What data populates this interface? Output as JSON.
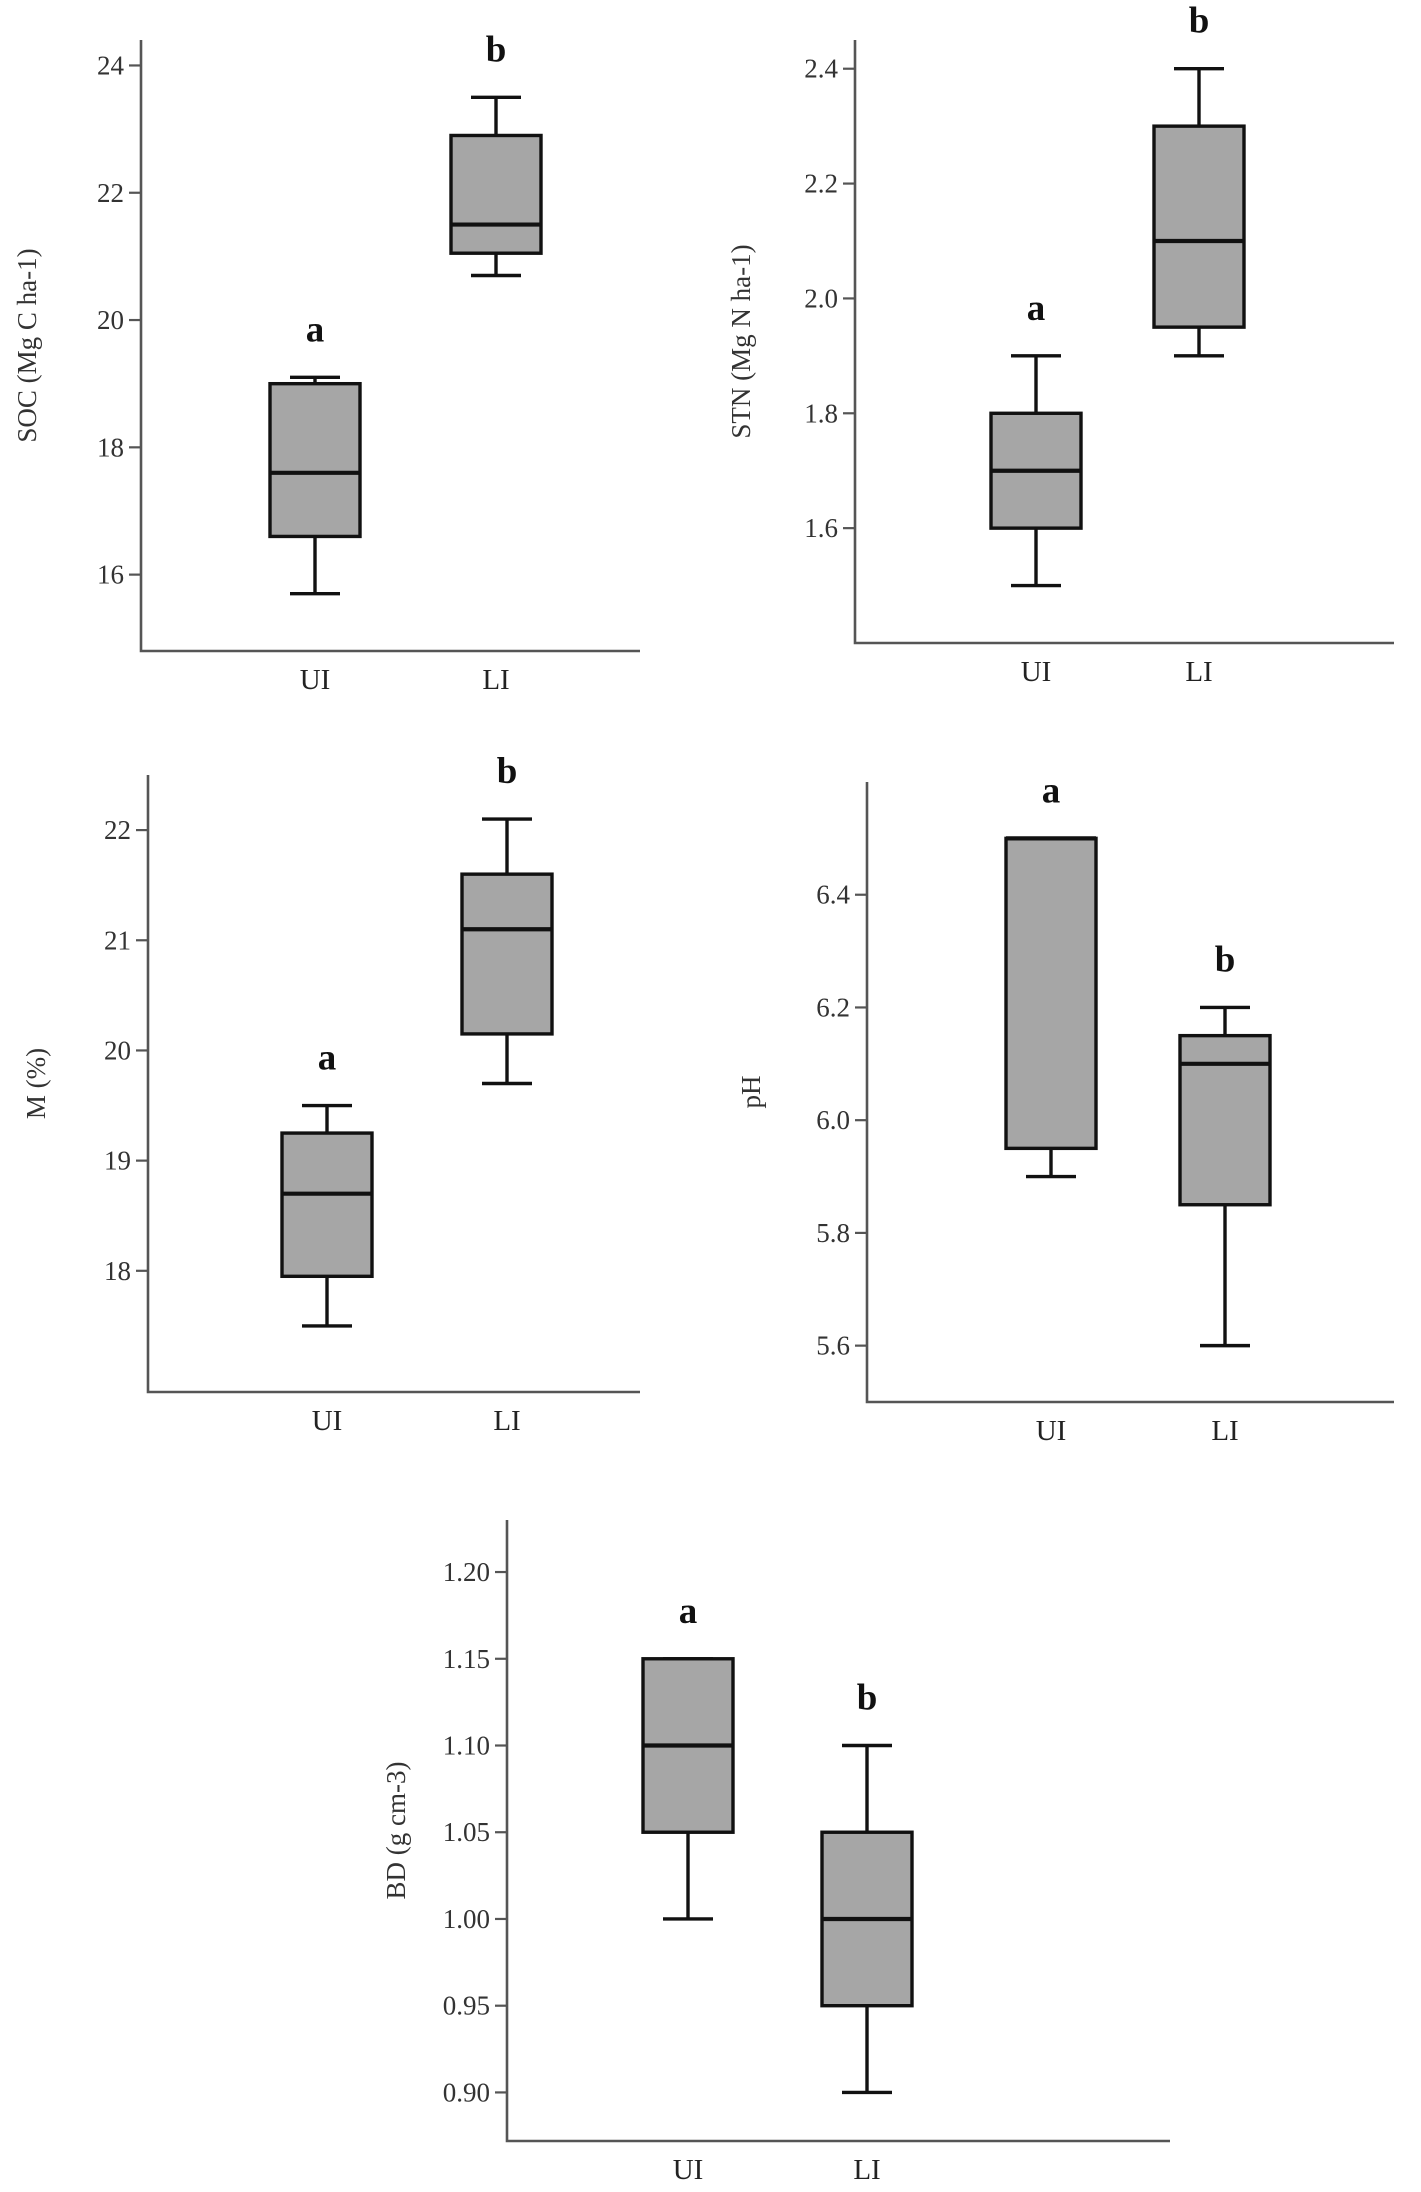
{
  "chart_data": [
    {
      "type": "box",
      "ylabel": "SOC (Mg C ha-1)",
      "ylim": [
        14.8,
        24.4
      ],
      "yticks": [
        16,
        18,
        20,
        22,
        24
      ],
      "tick_decimals": 0,
      "categories": [
        "UI",
        "LI"
      ],
      "boxes": [
        {
          "category": "UI",
          "min": 15.7,
          "q1": 16.6,
          "median": 17.6,
          "q3": 19.0,
          "max": 19.1,
          "letter": "a"
        },
        {
          "category": "LI",
          "min": 20.7,
          "q1": 21.05,
          "median": 21.5,
          "q3": 22.9,
          "max": 23.5,
          "letter": "b"
        }
      ]
    },
    {
      "type": "box",
      "ylabel": "STN (Mg N ha-1)",
      "ylim": [
        1.4,
        2.45
      ],
      "yticks": [
        1.6,
        1.8,
        2.0,
        2.2,
        2.4
      ],
      "tick_decimals": 1,
      "categories": [
        "UI",
        "LI"
      ],
      "boxes": [
        {
          "category": "UI",
          "min": 1.5,
          "q1": 1.6,
          "median": 1.7,
          "q3": 1.8,
          "max": 1.9,
          "letter": "a"
        },
        {
          "category": "LI",
          "min": 1.9,
          "q1": 1.95,
          "median": 2.1,
          "q3": 2.3,
          "max": 2.4,
          "letter": "b"
        }
      ]
    },
    {
      "type": "box",
      "ylabel": "M (%)",
      "ylim": [
        16.9,
        22.5
      ],
      "yticks": [
        18,
        19,
        20,
        21,
        22
      ],
      "tick_decimals": 0,
      "categories": [
        "UI",
        "LI"
      ],
      "boxes": [
        {
          "category": "UI",
          "min": 17.5,
          "q1": 17.95,
          "median": 18.7,
          "q3": 19.25,
          "max": 19.5,
          "letter": "a"
        },
        {
          "category": "LI",
          "min": 19.7,
          "q1": 20.15,
          "median": 21.1,
          "q3": 21.6,
          "max": 22.1,
          "letter": "b"
        }
      ]
    },
    {
      "type": "box",
      "ylabel": "pH",
      "ylim": [
        5.5,
        6.6
      ],
      "yticks": [
        5.6,
        5.8,
        6.0,
        6.2,
        6.4
      ],
      "tick_decimals": 1,
      "categories": [
        "UI",
        "LI"
      ],
      "boxes": [
        {
          "category": "UI",
          "min": 5.9,
          "q1": 5.95,
          "median": 6.5,
          "q3": 6.5,
          "max": 6.5,
          "letter": "a"
        },
        {
          "category": "LI",
          "min": 5.6,
          "q1": 5.85,
          "median": 6.1,
          "q3": 6.15,
          "max": 6.2,
          "letter": "b"
        }
      ]
    },
    {
      "type": "box",
      "ylabel": "BD (g cm-3)",
      "ylim": [
        0.872,
        1.23
      ],
      "yticks": [
        0.9,
        0.95,
        1.0,
        1.05,
        1.1,
        1.15,
        1.2
      ],
      "tick_decimals": 2,
      "categories": [
        "UI",
        "LI"
      ],
      "boxes": [
        {
          "category": "UI",
          "min": 1.0,
          "q1": 1.05,
          "median": 1.1,
          "q3": 1.15,
          "max": 1.15,
          "letter": "a"
        },
        {
          "category": "LI",
          "min": 0.9,
          "q1": 0.95,
          "median": 1.0,
          "q3": 1.05,
          "max": 1.1,
          "letter": "b"
        }
      ]
    }
  ]
}
